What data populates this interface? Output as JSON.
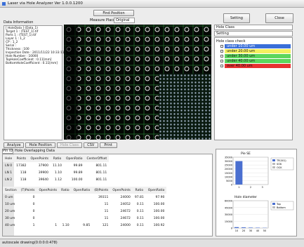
{
  "window": {
    "title": "Laser via Hole Analyzer Ver 1.0.0.1200"
  },
  "toolbar": {
    "find_position": "Find Position",
    "measure_place_label": "Measure Place",
    "measure_place_value": "Original",
    "setting": "Setting",
    "close": "Close"
  },
  "info": {
    "title": "Data Information",
    "lines": [
      "[ HoleData ] (Data_1)",
      "Target 1 : (TEST_1).tif",
      "Parts 1 : (TEST_1).tif",
      "Layer 1 : 1_2",
      "CP : 1_2",
      "Serial : ",
      "Thickness : 100",
      "Inspection Date : 2011/11/22 10:33:11",
      "Hole Number : 10000",
      "TopHoleCoefficient : 0.11[mm]",
      "BottomHoleCoefficient : 0.11[mm]"
    ]
  },
  "side": {
    "hole_class": "Hole Class",
    "setting": "Setting",
    "tree_title": "Hole class check",
    "items": [
      {
        "label": "under 10.00 um",
        "color": "#3a6fd8"
      },
      {
        "label": "under 20.00 um",
        "color": "#f4f060"
      },
      {
        "label": "under 30.00 um",
        "color": "#5cd65c"
      },
      {
        "label": "under 40.00 um",
        "color": "#5cd65c"
      },
      {
        "label": "over 40.00 um",
        "color": "#e83030"
      }
    ]
  },
  "bottom": {
    "buttons": [
      "Analyze",
      "Hole Position",
      "Hole Class",
      "CSV",
      "Print"
    ],
    "tab": "Pin ID",
    "section_title": "Hole Overlapping Data",
    "table1": {
      "columns": [
        "Hole",
        "Points",
        "OpenPoints",
        "Ratio",
        "OpenRatio",
        "CenterOffset"
      ],
      "rows": [
        [
          "LN 0",
          "17382",
          "37900",
          "11.10",
          "99.89",
          "801.11"
        ],
        [
          "LN 1",
          "118",
          "39900",
          "1.10",
          "99.89",
          "801.11"
        ],
        [
          "LN 2",
          "118",
          "39640",
          "1.12",
          "100.00",
          "801.11"
        ]
      ]
    },
    "table2": {
      "columns": [
        "Section",
        "(T)Points",
        "OpenPoints",
        "Ratio",
        "OpenRatio",
        "(B)Points",
        "OpenPoints",
        "Ratio",
        "OpenRatio"
      ],
      "rows": [
        [
          "0 um",
          "0",
          "",
          "",
          "",
          "39311",
          "24000",
          "97.81",
          "97.90"
        ],
        [
          "10 um",
          "0",
          "",
          "",
          "",
          "11",
          "24052",
          "0.11",
          "100.00"
        ],
        [
          "20 um",
          "0",
          "",
          "",
          "",
          "11",
          "24672",
          "0.11",
          "100.00"
        ],
        [
          "30 um",
          "0",
          "",
          "",
          "",
          "11",
          "24672",
          "0.11",
          "100.00"
        ],
        [
          "40 um",
          "1",
          "1",
          "1.10",
          "9.85",
          "121",
          "24000",
          "0.11",
          "100.92"
        ]
      ]
    }
  },
  "charts": [
    {
      "title": "Pie SE",
      "yticks": [
        35000,
        30000,
        25000,
        20000,
        15000,
        10000,
        5000,
        0
      ],
      "categories": [
        "1",
        "2",
        "3"
      ],
      "values": [
        30000,
        0,
        0
      ],
      "legend": [
        "TP(001)",
        "SOK",
        "OCK"
      ]
    },
    {
      "title": "Hole diameter",
      "yticks": [
        60000,
        45000,
        30000,
        15000,
        0
      ],
      "categories": [
        "10",
        "20",
        "30",
        "40",
        "50"
      ],
      "values": [
        2000,
        1500,
        1000,
        800,
        500
      ],
      "legend": [
        "Top",
        "Bottom"
      ]
    }
  ],
  "status": "autoscale drawing(0:0:0:0:478)"
}
